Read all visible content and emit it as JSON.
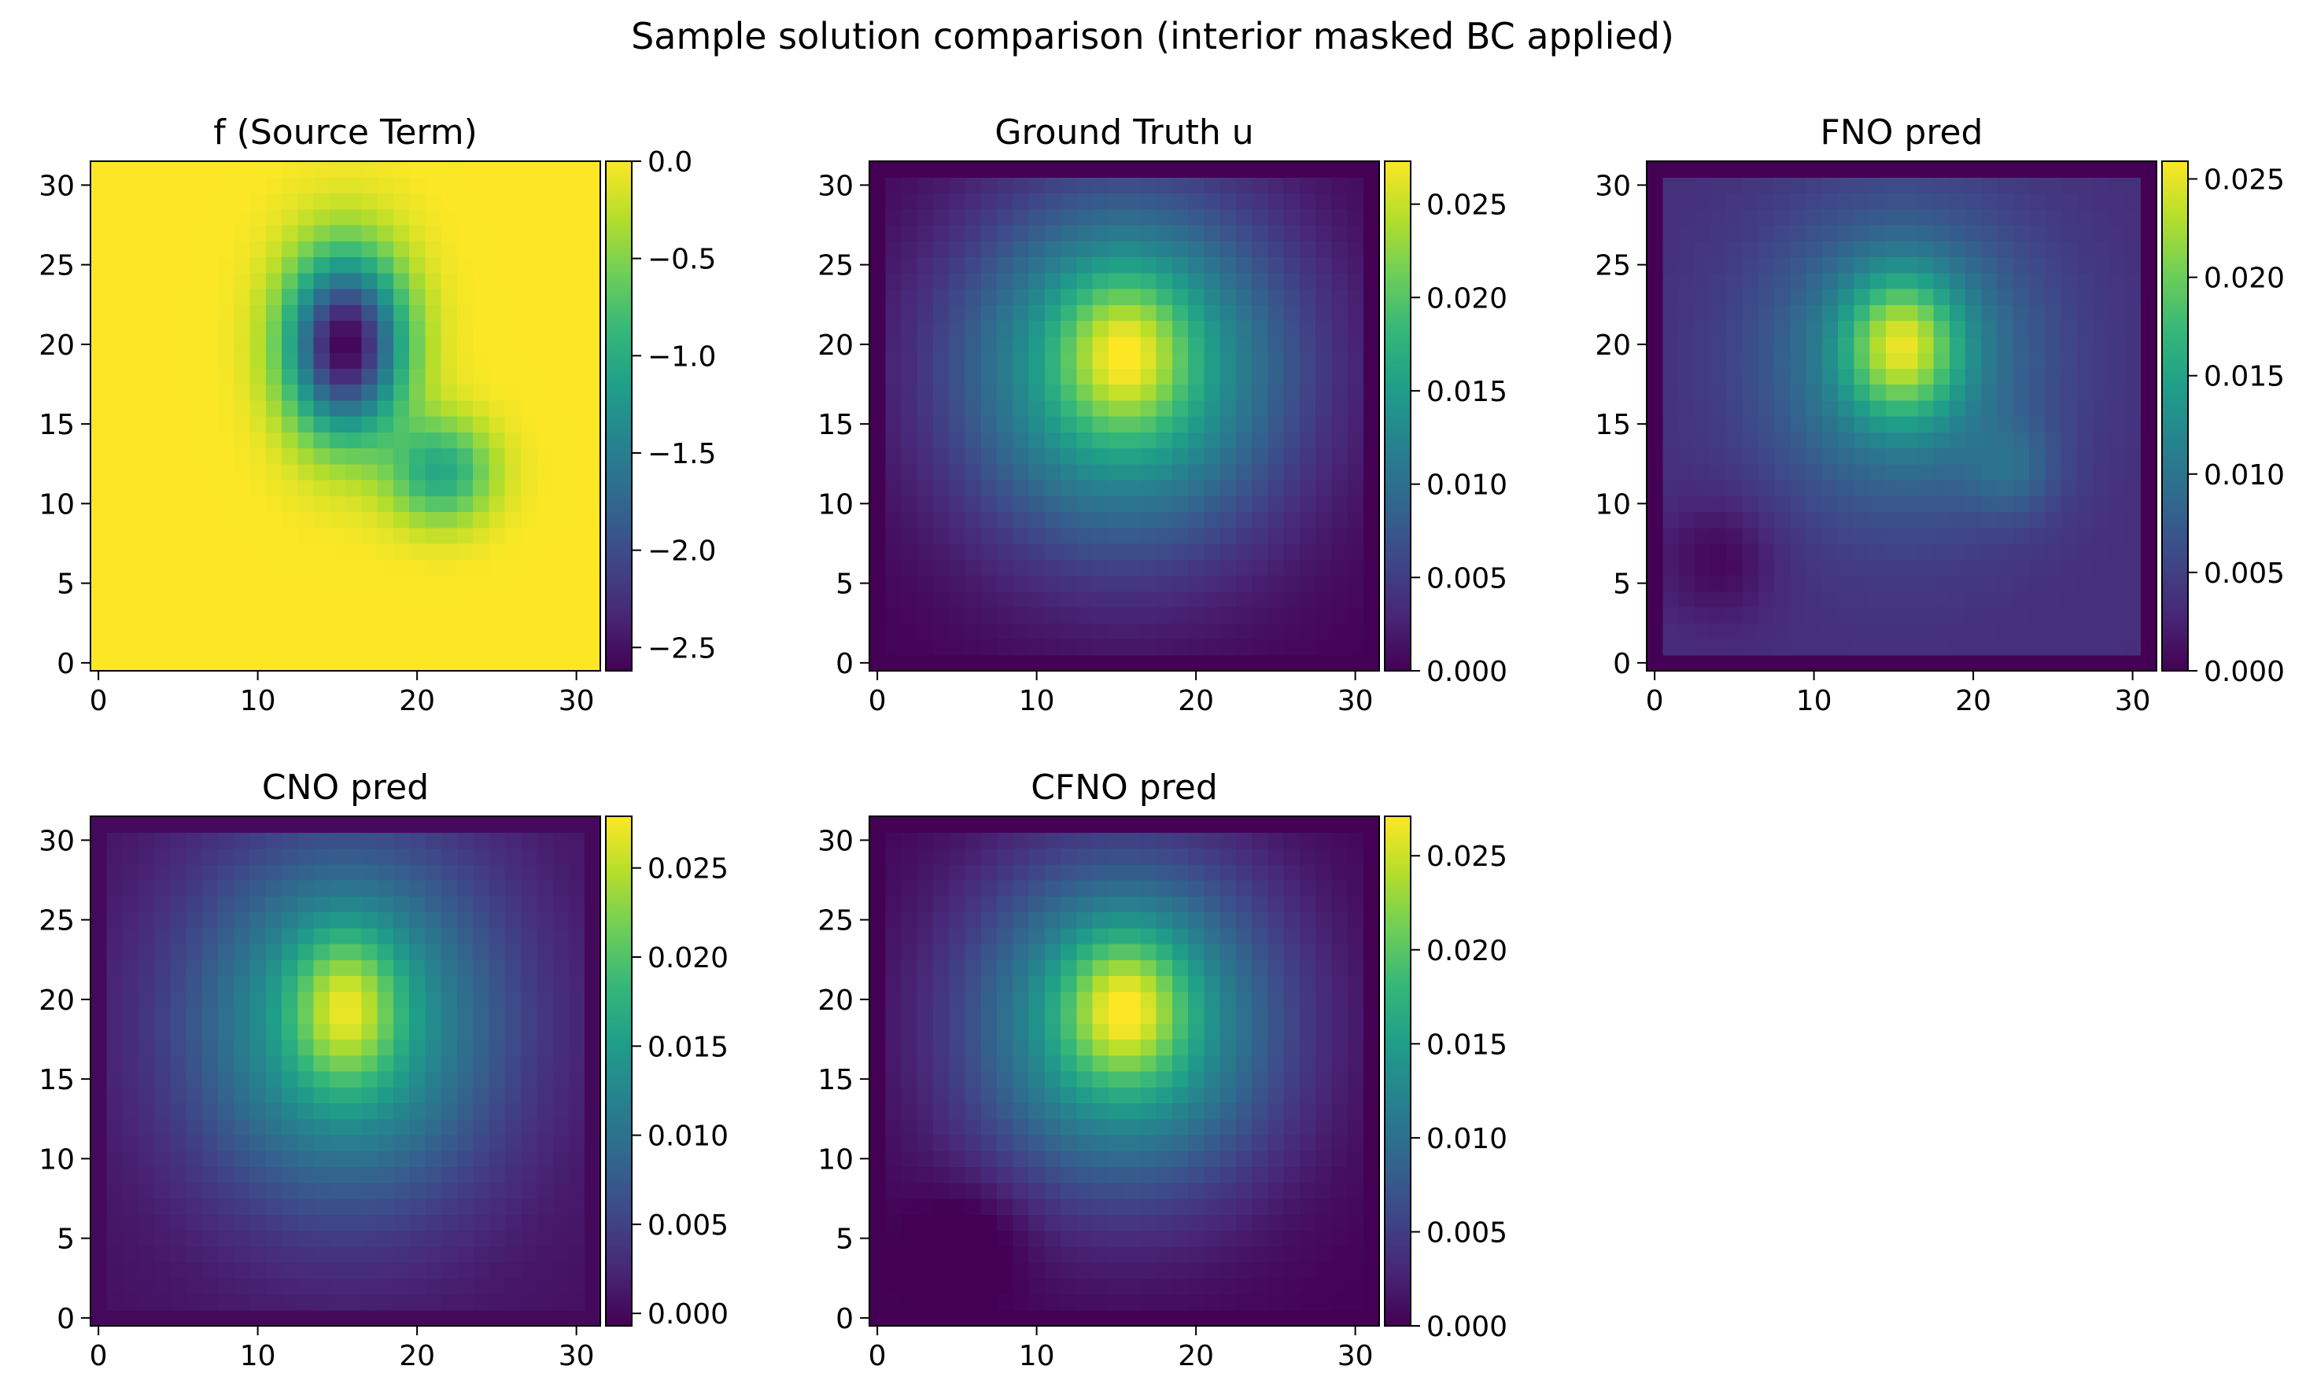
{
  "figure": {
    "suptitle": "Sample solution comparison (interior masked BC applied)"
  },
  "colormap": {
    "name": "viridis",
    "stops": [
      "#440154",
      "#482777",
      "#3e4989",
      "#31688e",
      "#26828e",
      "#1f9e89",
      "#35b779",
      "#6ece58",
      "#b5de2b",
      "#fde725"
    ]
  },
  "chart_data": [
    {
      "type": "heatmap",
      "title": "f (Source Term)",
      "grid_size": 32,
      "xlim": [
        -0.5,
        31.5
      ],
      "ylim": [
        -0.5,
        31.5
      ],
      "xticks": [
        0,
        10,
        20,
        30
      ],
      "yticks": [
        0,
        5,
        10,
        15,
        20,
        25,
        30
      ],
      "colorbar": {
        "range": [
          -2.62,
          0.0
        ],
        "ticks": [
          0.0,
          -0.5,
          -1.0,
          -1.5,
          -2.0,
          -2.5
        ],
        "tick_labels": [
          "0.0",
          "−0.5",
          "−1.0",
          "−1.5",
          "−2.0",
          "−2.5"
        ]
      },
      "field": {
        "kind": "sum_of_gaussians",
        "base": 0.0,
        "blobs": [
          {
            "cx": 15.5,
            "cy": 20,
            "sx": 2.6,
            "sy": 4.0,
            "amp": -2.62
          },
          {
            "cx": 21.5,
            "cy": 12,
            "sx": 2.3,
            "sy": 2.3,
            "amp": -1.05
          }
        ]
      }
    },
    {
      "type": "heatmap",
      "title": "Ground Truth u",
      "grid_size": 32,
      "xlim": [
        -0.5,
        31.5
      ],
      "ylim": [
        -0.5,
        31.5
      ],
      "xticks": [
        0,
        10,
        20,
        30
      ],
      "yticks": [
        0,
        5,
        10,
        15,
        20,
        25,
        30
      ],
      "colorbar": {
        "range": [
          0.0,
          0.0273
        ],
        "ticks": [
          0.025,
          0.02,
          0.015,
          0.01,
          0.005,
          0.0
        ],
        "tick_labels": [
          "0.025",
          "0.020",
          "0.015",
          "0.010",
          "0.005",
          "0.000"
        ]
      },
      "field": {
        "kind": "sum_of_gaussians",
        "base": 0.0,
        "boundary_zero": true,
        "blobs": [
          {
            "cx": 15.5,
            "cy": 19.5,
            "sx": 2.6,
            "sy": 3.2,
            "amp": 0.0095
          },
          {
            "cx": 15.5,
            "cy": 18.5,
            "sx": 7.5,
            "sy": 8.0,
            "amp": 0.0185
          }
        ]
      }
    },
    {
      "type": "heatmap",
      "title": "FNO pred",
      "grid_size": 32,
      "xlim": [
        -0.5,
        31.5
      ],
      "ylim": [
        -0.5,
        31.5
      ],
      "xticks": [
        0,
        10,
        20,
        30
      ],
      "yticks": [
        0,
        5,
        10,
        15,
        20,
        25,
        30
      ],
      "colorbar": {
        "range": [
          0.0,
          0.0259
        ],
        "ticks": [
          0.025,
          0.02,
          0.015,
          0.01,
          0.005,
          0.0
        ],
        "tick_labels": [
          "0.025",
          "0.020",
          "0.015",
          "0.010",
          "0.005",
          "0.000"
        ]
      },
      "field": {
        "kind": "sum_of_gaussians",
        "base": 0.0035,
        "boundary_zero": true,
        "blobs": [
          {
            "cx": 15.5,
            "cy": 20,
            "sx": 2.4,
            "sy": 3.0,
            "amp": 0.0125
          },
          {
            "cx": 15.5,
            "cy": 19,
            "sx": 6.0,
            "sy": 6.5,
            "amp": 0.0095
          },
          {
            "cx": 22.5,
            "cy": 12,
            "sx": 2.0,
            "sy": 2.0,
            "amp": 0.0035
          },
          {
            "cx": 4,
            "cy": 6.5,
            "sx": 2.6,
            "sy": 2.6,
            "amp": -0.0032
          }
        ]
      }
    },
    {
      "type": "heatmap",
      "title": "CNO pred",
      "grid_size": 32,
      "xlim": [
        -0.5,
        31.5
      ],
      "ylim": [
        -0.5,
        31.5
      ],
      "xticks": [
        0,
        10,
        20,
        30
      ],
      "yticks": [
        0,
        5,
        10,
        15,
        20,
        25,
        30
      ],
      "colorbar": {
        "range": [
          -0.0007,
          0.0279
        ],
        "ticks": [
          0.025,
          0.02,
          0.015,
          0.01,
          0.005,
          0.0
        ],
        "tick_labels": [
          "0.025",
          "0.020",
          "0.015",
          "0.010",
          "0.005",
          "0.000"
        ]
      },
      "field": {
        "kind": "sum_of_gaussians",
        "base": 0.0005,
        "boundary_zero": true,
        "blobs": [
          {
            "cx": 15.5,
            "cy": 19.5,
            "sx": 2.2,
            "sy": 3.2,
            "amp": 0.0105
          },
          {
            "cx": 15.5,
            "cy": 18.5,
            "sx": 7.0,
            "sy": 8.0,
            "amp": 0.0165
          }
        ]
      }
    },
    {
      "type": "heatmap",
      "title": "CFNO pred",
      "grid_size": 32,
      "xlim": [
        -0.5,
        31.5
      ],
      "ylim": [
        -0.5,
        31.5
      ],
      "xticks": [
        0,
        10,
        20,
        30
      ],
      "yticks": [
        0,
        5,
        10,
        15,
        20,
        25,
        30
      ],
      "colorbar": {
        "range": [
          0.0,
          0.0271
        ],
        "ticks": [
          0.025,
          0.02,
          0.015,
          0.01,
          0.005,
          0.0
        ],
        "tick_labels": [
          "0.025",
          "0.020",
          "0.015",
          "0.010",
          "0.005",
          "0.000"
        ]
      },
      "field": {
        "kind": "sum_of_gaussians",
        "base": 0.0,
        "boundary_zero": true,
        "blobs": [
          {
            "cx": 15.5,
            "cy": 19.5,
            "sx": 2.5,
            "sy": 3.0,
            "amp": 0.0105
          },
          {
            "cx": 15.5,
            "cy": 18.5,
            "sx": 7.0,
            "sy": 7.5,
            "amp": 0.0175
          },
          {
            "cx": 6,
            "cy": 5,
            "sx": 2.5,
            "sy": 2.5,
            "amp": -0.0025
          }
        ]
      }
    }
  ]
}
